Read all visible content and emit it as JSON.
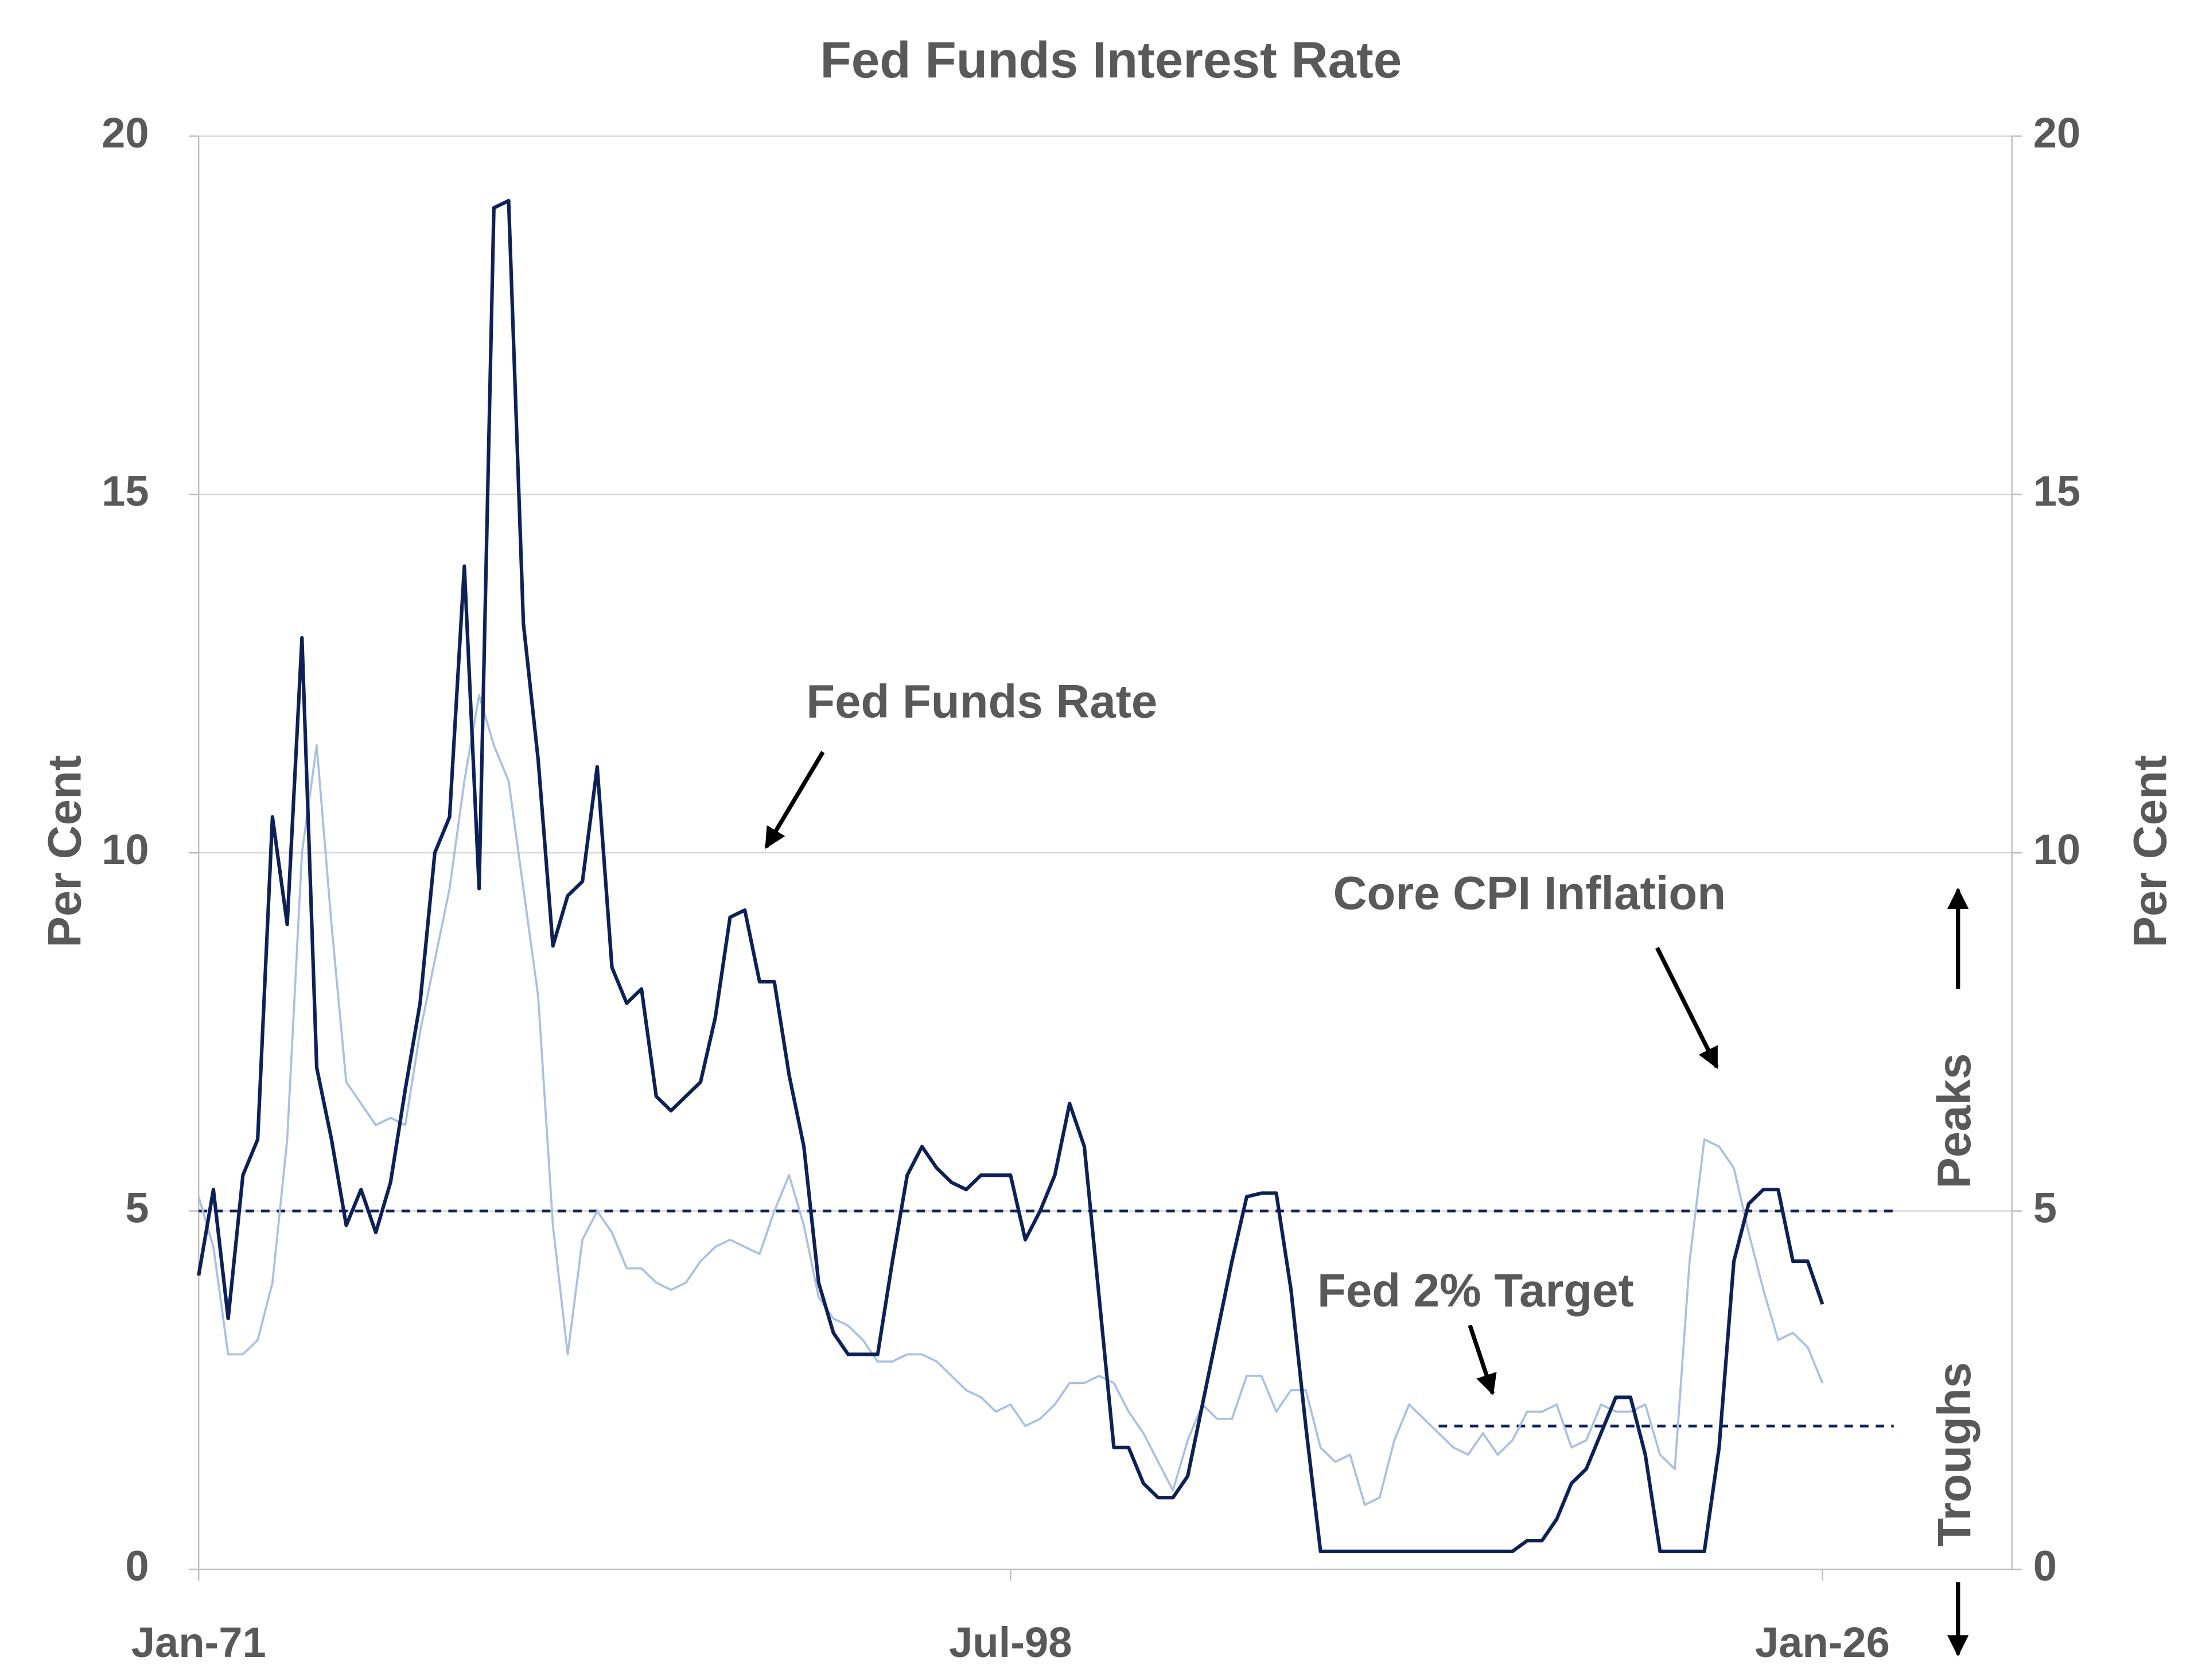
{
  "chart_data": {
    "type": "line",
    "title": "Fed Funds Interest Rate",
    "y_label": "Per  Cent",
    "y2_label": "Per  Cent",
    "x": [
      "Jan-71",
      "Jul-71",
      "Jan-72",
      "Jul-72",
      "Jan-73",
      "Jul-73",
      "Jan-74",
      "Jul-74",
      "Jan-75",
      "Jul-75",
      "Jan-76",
      "Jul-76",
      "Jan-77",
      "Jul-77",
      "Jan-78",
      "Jul-78",
      "Jan-79",
      "Jul-79",
      "Jan-80",
      "Jul-80",
      "Jan-81",
      "Jul-81",
      "Jan-82",
      "Jul-82",
      "Jan-83",
      "Jul-83",
      "Jan-84",
      "Jul-84",
      "Jan-85",
      "Jul-85",
      "Jan-86",
      "Jul-86",
      "Jan-87",
      "Jul-87",
      "Jan-88",
      "Jul-88",
      "Jan-89",
      "Jul-89",
      "Jan-90",
      "Jul-90",
      "Jan-91",
      "Jul-91",
      "Jan-92",
      "Jul-92",
      "Jan-93",
      "Jul-93",
      "Jan-94",
      "Jul-94",
      "Jan-95",
      "Jul-95",
      "Jan-96",
      "Jul-96",
      "Jan-97",
      "Jul-97",
      "Jan-98",
      "Jul-98",
      "Jan-99",
      "Jul-99",
      "Jan-00",
      "Jul-00",
      "Jan-01",
      "Jul-01",
      "Jan-02",
      "Jul-02",
      "Jan-03",
      "Jul-03",
      "Jan-04",
      "Jul-04",
      "Jan-05",
      "Jul-05",
      "Jan-06",
      "Jul-06",
      "Jan-07",
      "Jul-07",
      "Jan-08",
      "Jul-08",
      "Jan-09",
      "Jul-09",
      "Jan-10",
      "Jul-10",
      "Jan-11",
      "Jul-11",
      "Jan-12",
      "Jul-12",
      "Jan-13",
      "Jul-13",
      "Jan-14",
      "Jul-14",
      "Jan-15",
      "Jul-15",
      "Jan-16",
      "Jul-16",
      "Jan-17",
      "Jul-17",
      "Jan-18",
      "Jul-18",
      "Jan-19",
      "Jul-19",
      "Jan-20",
      "Jul-20",
      "Jan-21",
      "Jul-21",
      "Jan-22",
      "Jul-22",
      "Jan-23",
      "Jul-23",
      "Jan-24",
      "Jul-24",
      "Jan-25",
      "Jul-25",
      "Jan-26"
    ],
    "series": [
      {
        "name": "Core CPI Inflation",
        "color": "#a9c0e2",
        "width": 1.5,
        "values": [
          5.2,
          4.5,
          3.0,
          3.0,
          3.2,
          4.0,
          6.0,
          10.0,
          11.5,
          9.0,
          6.8,
          6.5,
          6.2,
          6.3,
          6.2,
          7.5,
          8.5,
          9.5,
          11.0,
          12.2,
          11.5,
          11.0,
          9.5,
          8.0,
          4.8,
          3.0,
          4.6,
          5.0,
          4.7,
          4.2,
          4.2,
          4.0,
          3.9,
          4.0,
          4.3,
          4.5,
          4.6,
          4.5,
          4.4,
          5.0,
          5.5,
          4.8,
          3.8,
          3.5,
          3.4,
          3.2,
          2.9,
          2.9,
          3.0,
          3.0,
          2.9,
          2.7,
          2.5,
          2.4,
          2.2,
          2.3,
          2.0,
          2.1,
          2.3,
          2.6,
          2.6,
          2.7,
          2.6,
          2.2,
          1.9,
          1.5,
          1.1,
          1.8,
          2.3,
          2.1,
          2.1,
          2.7,
          2.7,
          2.2,
          2.5,
          2.5,
          1.7,
          1.5,
          1.6,
          0.9,
          1.0,
          1.8,
          2.3,
          2.1,
          1.9,
          1.7,
          1.6,
          1.9,
          1.6,
          1.8,
          2.2,
          2.2,
          2.3,
          1.7,
          1.8,
          2.3,
          2.2,
          2.2,
          2.3,
          1.6,
          1.4,
          4.3,
          6.0,
          5.9,
          5.6,
          4.7,
          3.9,
          3.2,
          3.3,
          3.1,
          2.6
        ]
      },
      {
        "name": "Fed Funds Rate",
        "color": "#0d2157",
        "width": 2.5,
        "values": [
          4.1,
          5.3,
          3.5,
          5.5,
          6.0,
          10.5,
          9.0,
          13.0,
          7.0,
          6.0,
          4.8,
          5.3,
          4.7,
          5.4,
          6.7,
          7.9,
          10.0,
          10.5,
          14.0,
          9.5,
          19.0,
          19.1,
          13.2,
          11.3,
          8.7,
          9.4,
          9.6,
          11.2,
          8.4,
          7.9,
          8.1,
          6.6,
          6.4,
          6.6,
          6.8,
          7.7,
          9.1,
          9.2,
          8.2,
          8.2,
          6.9,
          5.9,
          4.0,
          3.3,
          3.0,
          3.0,
          3.0,
          4.3,
          5.5,
          5.9,
          5.6,
          5.4,
          5.3,
          5.5,
          5.5,
          5.5,
          4.6,
          5.0,
          5.5,
          6.5,
          5.9,
          3.8,
          1.7,
          1.7,
          1.2,
          1.0,
          1.0,
          1.3,
          2.3,
          3.3,
          4.3,
          5.2,
          5.25,
          5.25,
          3.9,
          2.0,
          0.25,
          0.25,
          0.25,
          0.25,
          0.25,
          0.25,
          0.25,
          0.25,
          0.25,
          0.25,
          0.25,
          0.25,
          0.25,
          0.25,
          0.4,
          0.4,
          0.7,
          1.2,
          1.4,
          1.9,
          2.4,
          2.4,
          1.6,
          0.25,
          0.25,
          0.25,
          0.25,
          1.7,
          4.3,
          5.1,
          5.3,
          5.3,
          4.3,
          4.3,
          3.7
        ]
      }
    ],
    "xlim": [
      "Jan-71",
      "Jun-32"
    ],
    "xticks": [
      "Jan-71",
      "Jul-98",
      "Jan-26"
    ],
    "ylim": [
      0,
      20
    ],
    "yticks": [
      0,
      5,
      10,
      15,
      20
    ],
    "y2lim": [
      0,
      20
    ],
    "y2ticks": [
      0,
      5,
      10,
      15,
      20
    ],
    "grid": true,
    "reference_lines": [
      {
        "value": 5,
        "x": [
          "Jan-71",
          "Jun-28"
        ],
        "color": "#0d2157"
      },
      {
        "value": 2,
        "x": [
          "Jan-13",
          "Jun-28"
        ],
        "color": "#0d2157"
      }
    ],
    "annotations": [
      {
        "text": "Fed Funds Rate"
      },
      {
        "text": "Core CPI Inflation"
      },
      {
        "text": "Fed 2% Target"
      },
      {
        "text": "Peaks"
      },
      {
        "text": "Troughs"
      }
    ]
  }
}
